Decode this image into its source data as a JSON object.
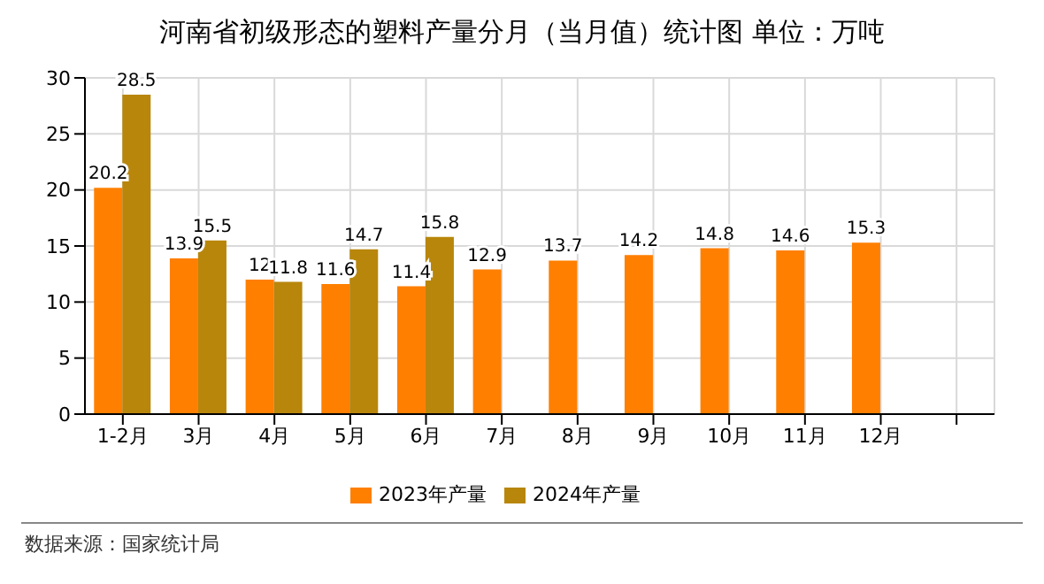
{
  "chart_data": {
    "type": "bar",
    "title": "河南省初级形态的塑料产量分月（当月值）统计图 单位：万吨",
    "categories": [
      "1-2月",
      "3月",
      "4月",
      "5月",
      "6月",
      "7月",
      "8月",
      "9月",
      "10月",
      "11月",
      "12月",
      null
    ],
    "series": [
      {
        "name": "2023年产量",
        "color": "#ff7f00",
        "values": [
          20.2,
          13.9,
          12,
          11.6,
          11.4,
          12.9,
          13.7,
          14.2,
          14.8,
          14.6,
          15.3,
          null
        ]
      },
      {
        "name": "2024年产量",
        "color": "#b8860b",
        "values": [
          28.5,
          15.5,
          11.8,
          14.7,
          15.8,
          null,
          null,
          null,
          null,
          null,
          null,
          null
        ]
      }
    ],
    "ylim": [
      0,
      30
    ],
    "yticks": [
      0,
      5,
      10,
      15,
      20,
      25,
      30
    ],
    "grid": true,
    "legend": "bottom",
    "data_labels": true,
    "annotations": [
      "数据来源：国家统计局"
    ]
  }
}
